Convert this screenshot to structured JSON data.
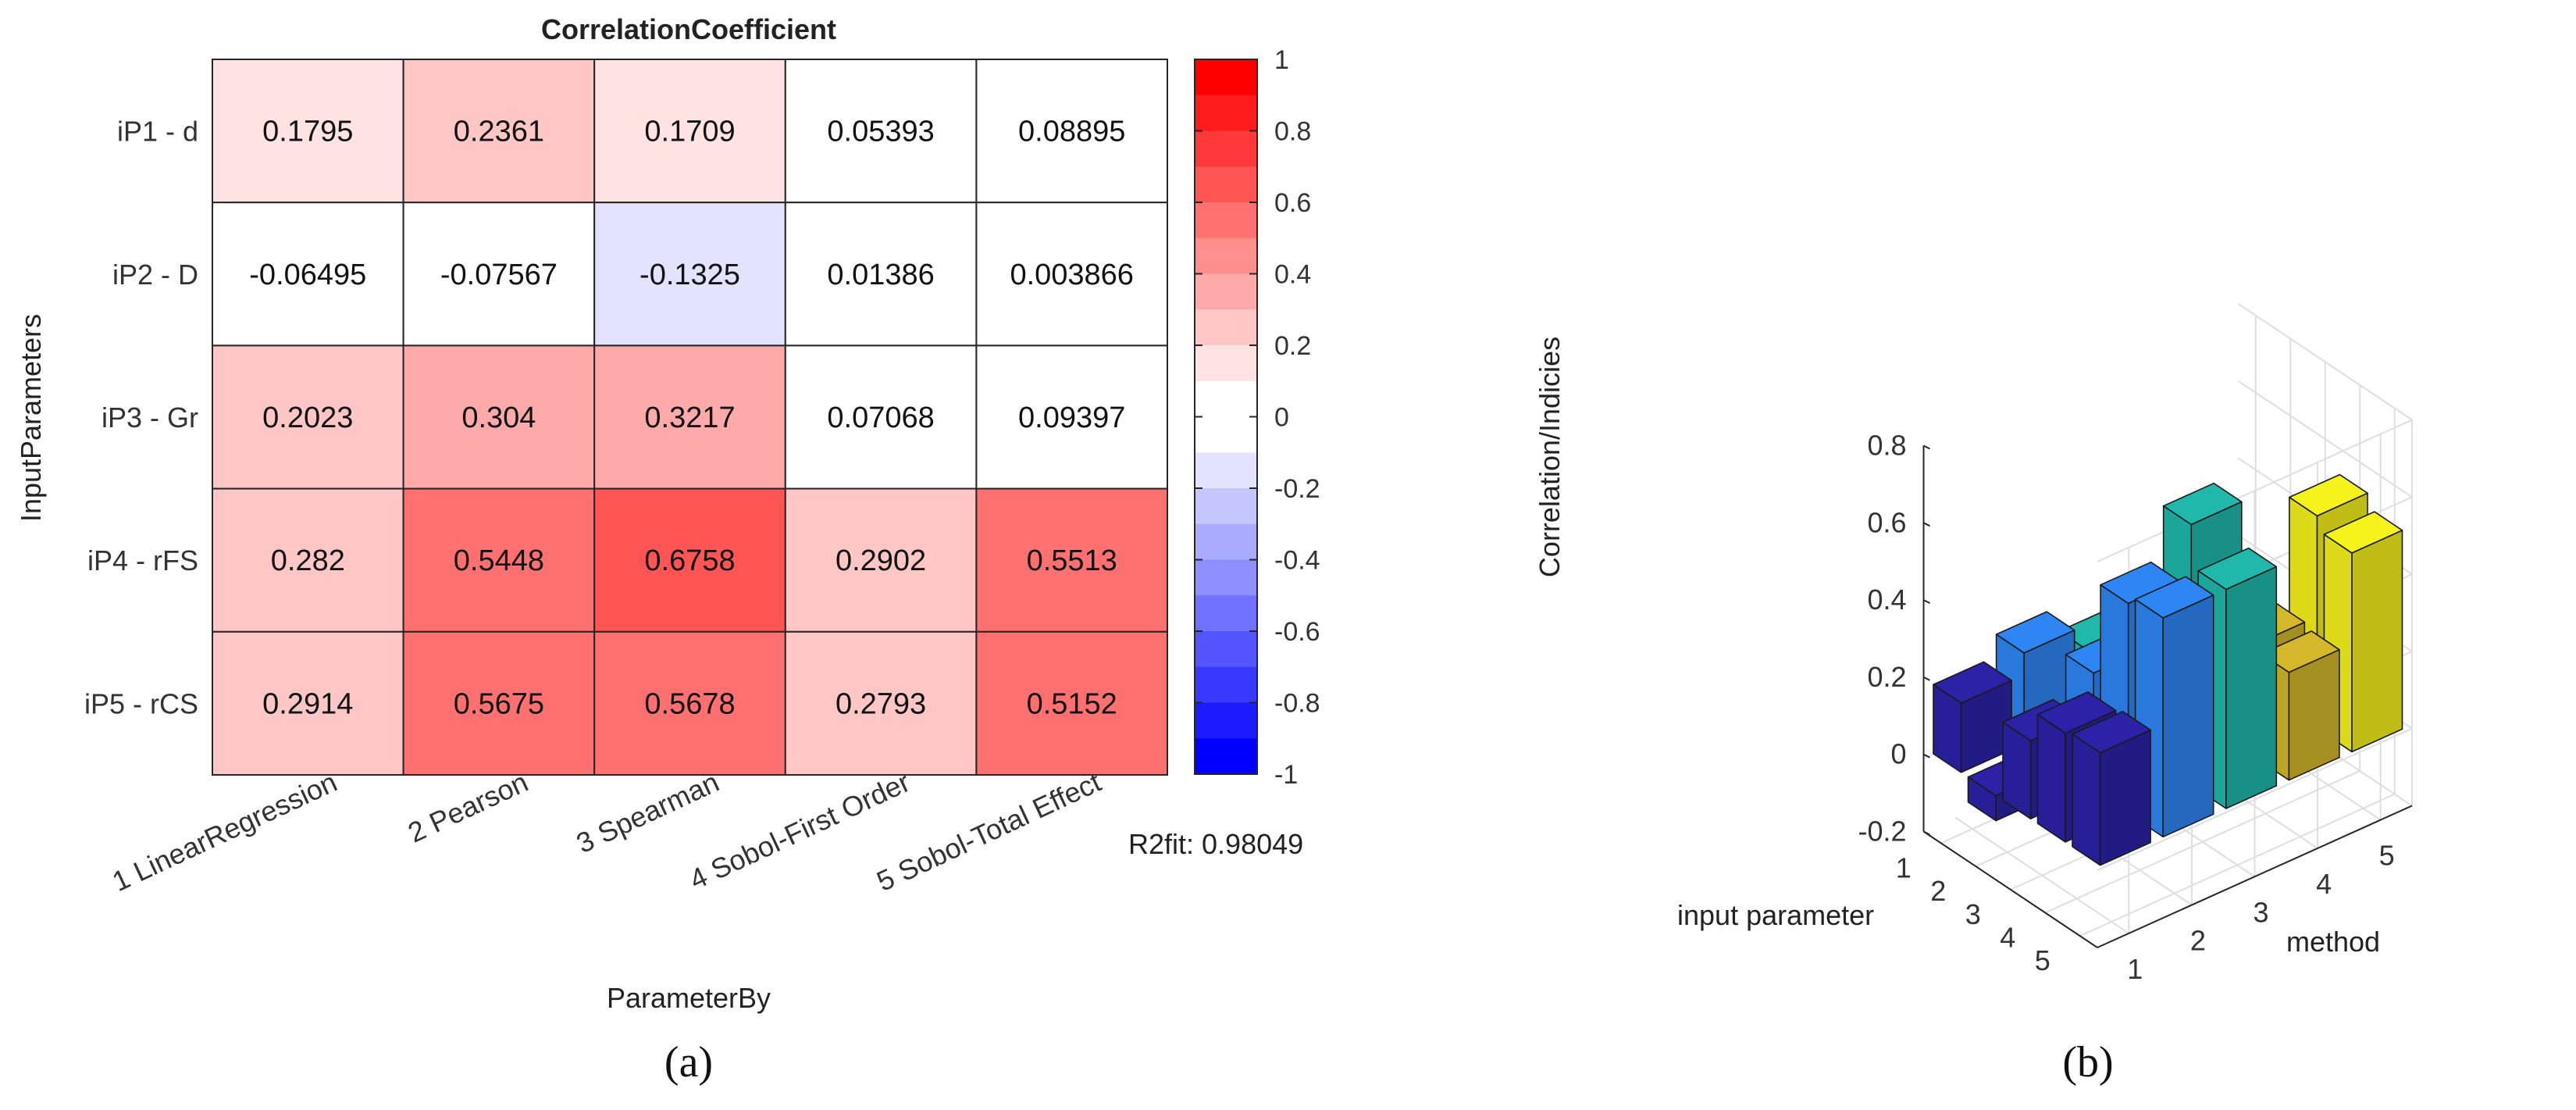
{
  "panels": {
    "a_label": "(a)",
    "b_label": "(b)"
  },
  "chart_data": [
    {
      "type": "heatmap",
      "title": "CorrelationCoefficient",
      "xlabel": "ParameterBy",
      "ylabel": "InputParameters",
      "columns": [
        "1 LinearRegression",
        "2 Pearson",
        "3 Spearman",
        "4 Sobol-First Order",
        "5 Sobol-Total Effect"
      ],
      "rows": [
        "iP1 - d",
        "iP2 - D",
        "iP3 - Gr",
        "iP4 - rFS",
        "iP5 - rCS"
      ],
      "values": [
        [
          0.1795,
          0.2361,
          0.1709,
          0.05393,
          0.08895
        ],
        [
          -0.06495,
          -0.07567,
          -0.1325,
          0.01386,
          0.003866
        ],
        [
          0.2023,
          0.304,
          0.3217,
          0.07068,
          0.09397
        ],
        [
          0.282,
          0.5448,
          0.6758,
          0.2902,
          0.5513
        ],
        [
          0.2914,
          0.5675,
          0.5678,
          0.2793,
          0.5152
        ]
      ],
      "value_labels": [
        [
          "0.1795",
          "0.2361",
          "0.1709",
          "0.05393",
          "0.08895"
        ],
        [
          "-0.06495",
          "-0.07567",
          "-0.1325",
          "0.01386",
          "0.003866"
        ],
        [
          "0.2023",
          "0.304",
          "0.3217",
          "0.07068",
          "0.09397"
        ],
        [
          "0.282",
          "0.5448",
          "0.6758",
          "0.2902",
          "0.5513"
        ],
        [
          "0.2914",
          "0.5675",
          "0.5678",
          "0.2793",
          "0.5152"
        ]
      ],
      "colorbar": {
        "range": [
          -1,
          1
        ],
        "levels": 20,
        "ticks": [
          1,
          0.8,
          0.6,
          0.4,
          0.2,
          0,
          -0.2,
          -0.4,
          -0.6,
          -0.8,
          -1
        ],
        "tick_labels": [
          "1",
          "0.8",
          "0.6",
          "0.4",
          "0.2",
          "0",
          "-0.2",
          "-0.4",
          "-0.6",
          "-0.8",
          "-1"
        ],
        "colormap": "blue-white-red"
      },
      "annotation": "R2fit: 0.98049"
    },
    {
      "type": "bar3d",
      "xlabel": "input parameter",
      "ylabel": "method",
      "zlabel": "Correlation/Indicies",
      "x_ticks": [
        "1",
        "2",
        "3",
        "4",
        "5"
      ],
      "y_ticks": [
        "1",
        "2",
        "3",
        "4",
        "5"
      ],
      "z_ticks": [
        0.8,
        0.6,
        0.4,
        0.2,
        0,
        -0.2
      ],
      "z_tick_labels": [
        "0.8",
        "0.6",
        "0.4",
        "0.2",
        "0",
        "-0.2"
      ],
      "zlim": [
        -0.2,
        0.8
      ],
      "method_colors": [
        "#2B22A8",
        "#2E86F5",
        "#1FB8AA",
        "#D4B72A",
        "#F5F21C"
      ],
      "values_by_method": [
        [
          0.1795,
          -0.06495,
          0.2023,
          0.282,
          0.2914
        ],
        [
          0.2361,
          -0.07567,
          0.304,
          0.5448,
          0.5675
        ],
        [
          0.1709,
          -0.1325,
          0.3217,
          0.6758,
          0.5678
        ],
        [
          0.05393,
          0.01386,
          0.07068,
          0.2902,
          0.2793
        ],
        [
          0.08895,
          0.003866,
          0.09397,
          0.5513,
          0.5152
        ]
      ]
    }
  ]
}
